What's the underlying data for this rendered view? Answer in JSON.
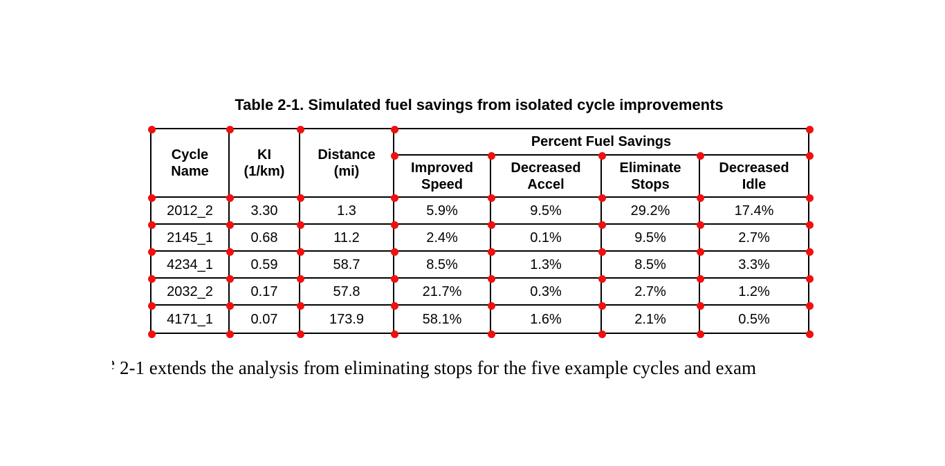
{
  "page": {
    "title": "Table 2-1. Simulated fuel savings from isolated cycle improvements",
    "body_fragment_left": "e",
    "body_text": "2-1 extends the analysis from eliminating stops for the five example cycles and exam"
  },
  "table": {
    "col_headers": [
      "Cycle\nName",
      "KI\n(1/km)",
      "Distance\n(mi)"
    ],
    "group_header": "Percent Fuel Savings",
    "sub_headers": [
      "Improved\nSpeed",
      "Decreased\nAccel",
      "Eliminate\nStops",
      "Decreased\nIdle"
    ],
    "rows": [
      [
        "2012_2",
        "3.30",
        "1.3",
        "5.9%",
        "9.5%",
        "29.2%",
        "17.4%"
      ],
      [
        "2145_1",
        "0.68",
        "11.2",
        "2.4%",
        "0.1%",
        "9.5%",
        "2.7%"
      ],
      [
        "4234_1",
        "0.59",
        "58.7",
        "8.5%",
        "1.3%",
        "8.5%",
        "3.3%"
      ],
      [
        "2032_2",
        "0.17",
        "57.8",
        "21.7%",
        "0.3%",
        "2.7%",
        "1.2%"
      ],
      [
        "4171_1",
        "0.07",
        "173.9",
        "58.1%",
        "1.6%",
        "2.1%",
        "0.5%"
      ]
    ]
  },
  "colors": {
    "dot": "#f20f0f",
    "line": "#000000"
  }
}
